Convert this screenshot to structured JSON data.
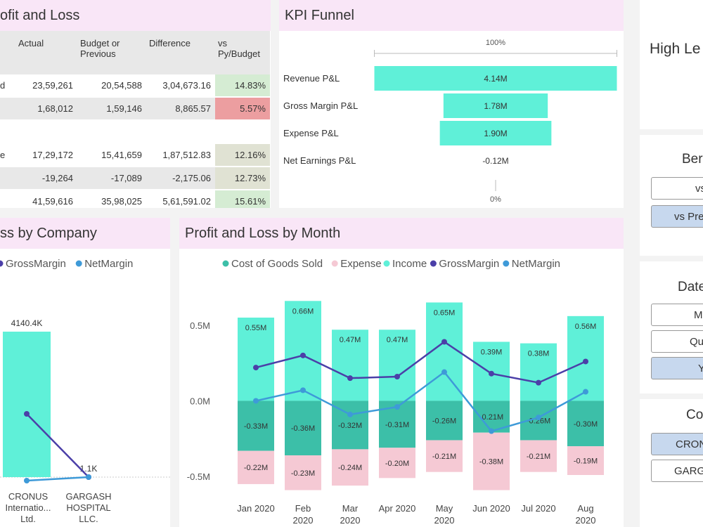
{
  "pl_panel": {
    "title": "ofit and Loss",
    "headers": [
      "Actual",
      "Budget or Previous",
      "Difference",
      "vs Py/Budget"
    ],
    "rows": [
      {
        "label": "d",
        "actual": "23,59,261",
        "budget": "20,54,588",
        "diff": "3,04,673.16",
        "pct": "14.83%",
        "color": "#d5ecd3"
      },
      {
        "label": "",
        "actual": "1,68,012",
        "budget": "1,59,146",
        "diff": "8,865.57",
        "pct": "5.57%",
        "color": "#ec9ea0"
      },
      {
        "label": "",
        "actual": "",
        "budget": "",
        "diff": "",
        "pct": "",
        "color": "#ffffff"
      },
      {
        "label": "e",
        "actual": "17,29,172",
        "budget": "15,41,659",
        "diff": "1,87,512.83",
        "pct": "12.16%",
        "color": "#e0e2d3"
      },
      {
        "label": "",
        "actual": "-19,264",
        "budget": "-17,089",
        "diff": "-2,175.06",
        "pct": "12.73%",
        "color": "#e0e2d3"
      },
      {
        "label": "",
        "actual": "41,59,616",
        "budget": "35,98,025",
        "diff": "5,61,591.02",
        "pct": "15.61%",
        "color": "#d5ecd3"
      }
    ]
  },
  "funnel_panel": {
    "title": "KPI Funnel",
    "top_label": "100%",
    "bottom_label": "0%",
    "items": [
      {
        "label": "Revenue P&L",
        "value": "4.14M",
        "fraction": 1.0
      },
      {
        "label": "Gross Margin P&L",
        "value": "1.78M",
        "fraction": 0.43
      },
      {
        "label": "Expense P&L",
        "value": "1.90M",
        "fraction": 0.46
      },
      {
        "label": "Net Earnings P&L",
        "value": "-0.12M",
        "fraction": 0
      }
    ]
  },
  "company_panel": {
    "title": "ss by Company",
    "legend": [
      {
        "name": "GrossMargin",
        "color": "#4b3fa8"
      },
      {
        "name": "NetMargin",
        "color": "#3e9ad8"
      }
    ],
    "chart_data": {
      "type": "bar",
      "categories": [
        "CRONUS Internatio... Ltd.",
        "GARGASH HOSPITAL LLC."
      ],
      "category_lines": [
        [
          "CRONUS",
          "Internatio...",
          "Ltd."
        ],
        [
          "GARGASH",
          "HOSPITAL",
          "LLC."
        ]
      ],
      "bar_values": [
        4140.4,
        1.1
      ],
      "bar_labels": [
        "4140.4K",
        "1.1K"
      ],
      "gross_margin": [
        1800,
        0
      ],
      "net_margin": [
        -100,
        0
      ],
      "ylim": [
        -300,
        4700
      ]
    }
  },
  "month_panel": {
    "title": "Profit and Loss by Month",
    "legend": [
      {
        "name": "Cost of Goods Sold",
        "color": "#3cbfa8"
      },
      {
        "name": "Expense",
        "color": "#f5c9d4"
      },
      {
        "name": "Income",
        "color": "#5ff0d8"
      },
      {
        "name": "GrossMargin",
        "color": "#4b3fa8"
      },
      {
        "name": "NetMargin",
        "color": "#3e9ad8"
      }
    ],
    "chart_data": {
      "type": "bar",
      "categories": [
        "Jan 2020",
        "Feb 2020",
        "Mar 2020",
        "Apr 2020",
        "May 2020",
        "Jun 2020",
        "Jul 2020",
        "Aug 2020"
      ],
      "category_lines": [
        [
          "Jan 2020"
        ],
        [
          "Feb",
          "2020"
        ],
        [
          "Mar",
          "2020"
        ],
        [
          "Apr 2020"
        ],
        [
          "May",
          "2020"
        ],
        [
          "Jun 2020"
        ],
        [
          "Jul 2020"
        ],
        [
          "Aug",
          "2020"
        ]
      ],
      "yticks": [
        {
          "v": 0.5,
          "label": "0.5M"
        },
        {
          "v": 0,
          "label": "0.0M"
        },
        {
          "v": -0.5,
          "label": "-0.5M"
        }
      ],
      "ylim": [
        -0.62,
        0.68
      ],
      "series": [
        {
          "name": "Income",
          "values": [
            0.55,
            0.66,
            0.47,
            0.47,
            0.65,
            0.39,
            0.38,
            0.56
          ],
          "labels": [
            "0.55M",
            "0.66M",
            "0.47M",
            "0.47M",
            "0.65M",
            "0.39M",
            "0.38M",
            "0.56M"
          ]
        },
        {
          "name": "Cost of Goods Sold",
          "values": [
            -0.33,
            -0.36,
            -0.32,
            -0.31,
            -0.26,
            -0.21,
            -0.26,
            -0.3
          ],
          "labels": [
            "-0.33M",
            "-0.36M",
            "-0.32M",
            "-0.31M",
            "-0.26M",
            "-0.21M",
            "-0.26M",
            "-0.30M"
          ]
        },
        {
          "name": "Expense",
          "values": [
            -0.22,
            -0.23,
            -0.24,
            -0.2,
            -0.21,
            -0.38,
            -0.21,
            -0.19
          ],
          "labels": [
            "-0.22M",
            "-0.23M",
            "-0.24M",
            "-0.20M",
            "-0.21M",
            "-0.38M",
            "-0.21M",
            "-0.19M"
          ]
        },
        {
          "name": "GrossMargin",
          "values": [
            0.22,
            0.3,
            0.15,
            0.16,
            0.39,
            0.18,
            0.12,
            0.26
          ]
        },
        {
          "name": "NetMargin",
          "values": [
            0.0,
            0.07,
            -0.09,
            -0.04,
            0.19,
            -0.2,
            -0.11,
            0.06
          ]
        }
      ]
    }
  },
  "right_panel": {
    "title": "High Le",
    "bench_heading": "Ber",
    "bench_buttons": [
      {
        "label": "vs",
        "selected": false
      },
      {
        "label": "vs Pre",
        "selected": true
      }
    ],
    "date_heading": "Date",
    "date_buttons": [
      {
        "label": "Mon",
        "selected": false
      },
      {
        "label": "Quar",
        "selected": false
      },
      {
        "label": "Yea",
        "selected": true
      }
    ],
    "company_heading": "Co",
    "company_buttons": [
      {
        "label": "CRONU",
        "selected": true
      },
      {
        "label": "GARGA",
        "selected": false
      }
    ]
  }
}
